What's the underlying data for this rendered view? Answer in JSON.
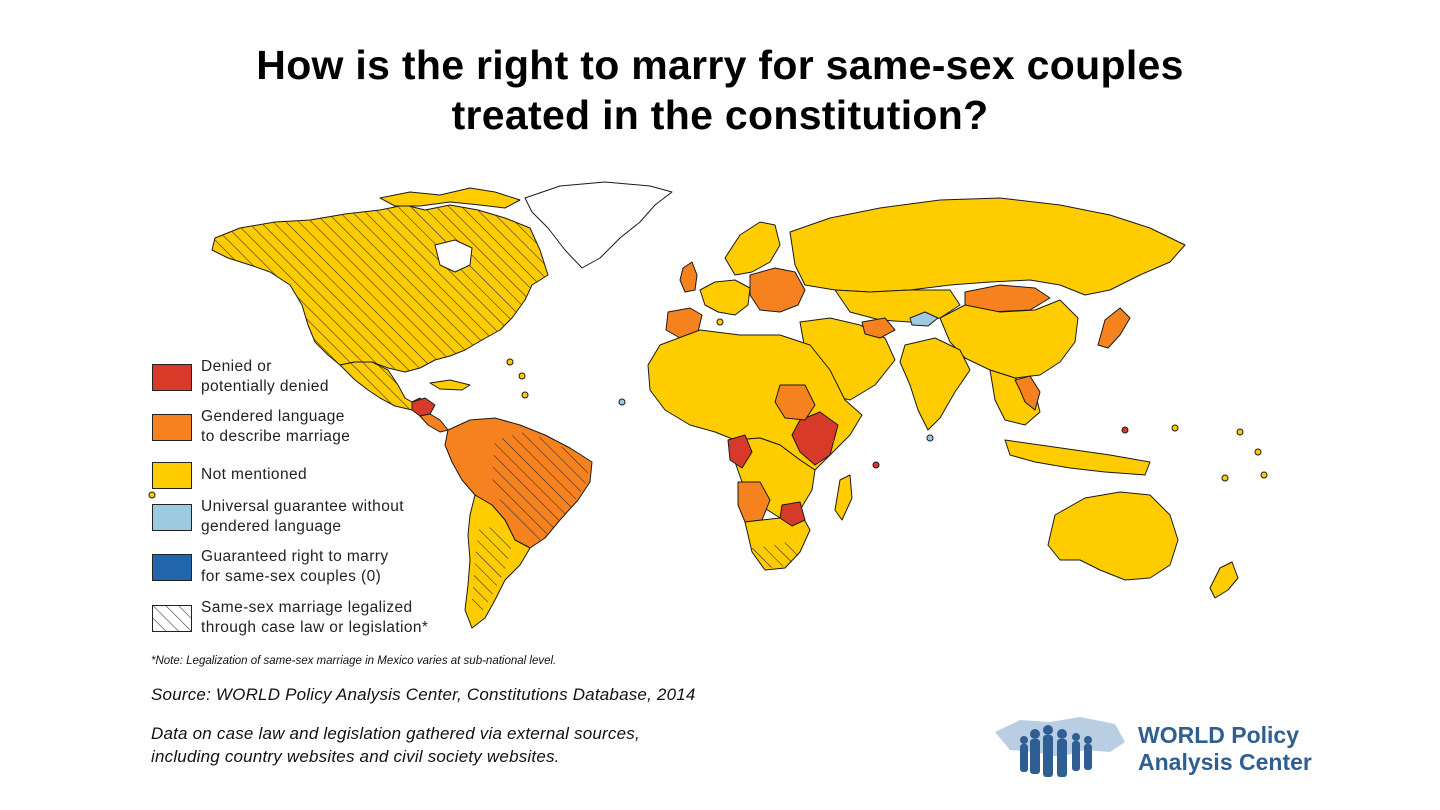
{
  "title": {
    "line1": "How is the right to marry for same-sex couples",
    "line2": "treated in the constitution?"
  },
  "colors": {
    "denied": "#d83a2a",
    "gendered": "#f5821f",
    "not_mentioned": "#ffcc00",
    "universal": "#9ecae1",
    "guaranteed": "#2166ac",
    "no_data": "#ffffff",
    "border": "#1a1a1a",
    "logo_blue": "#2f5e93"
  },
  "legend": [
    {
      "key": "denied",
      "line1": "Denied or",
      "line2": "potentially denied",
      "pattern": "solid"
    },
    {
      "key": "gendered",
      "line1": "Gendered language",
      "line2": "to describe marriage",
      "pattern": "solid"
    },
    {
      "key": "not_mentioned",
      "line1": "Not mentioned",
      "line2": "",
      "pattern": "solid"
    },
    {
      "key": "universal",
      "line1": "Universal guarantee without",
      "line2": "gendered language",
      "pattern": "solid"
    },
    {
      "key": "guaranteed",
      "line1": "Guaranteed right to marry",
      "line2": "for same-sex couples (0)",
      "pattern": "solid"
    },
    {
      "key": "no_data",
      "line1": "Same-sex marriage legalized",
      "line2": "through case law or legislation*",
      "pattern": "hatch"
    }
  ],
  "note": "*Note: Legalization of same-sex marriage in Mexico varies at sub-national level.",
  "source": "Source: WORLD Policy Analysis Center, Constitutions Database, 2014",
  "data_note": {
    "line1": "Data on case law and legislation gathered via external sources,",
    "line2": "including country websites and civil society websites."
  },
  "logo": {
    "line1": "WORLD Policy",
    "line2": "Analysis Center",
    "icon": "world-map-people-icon"
  }
}
